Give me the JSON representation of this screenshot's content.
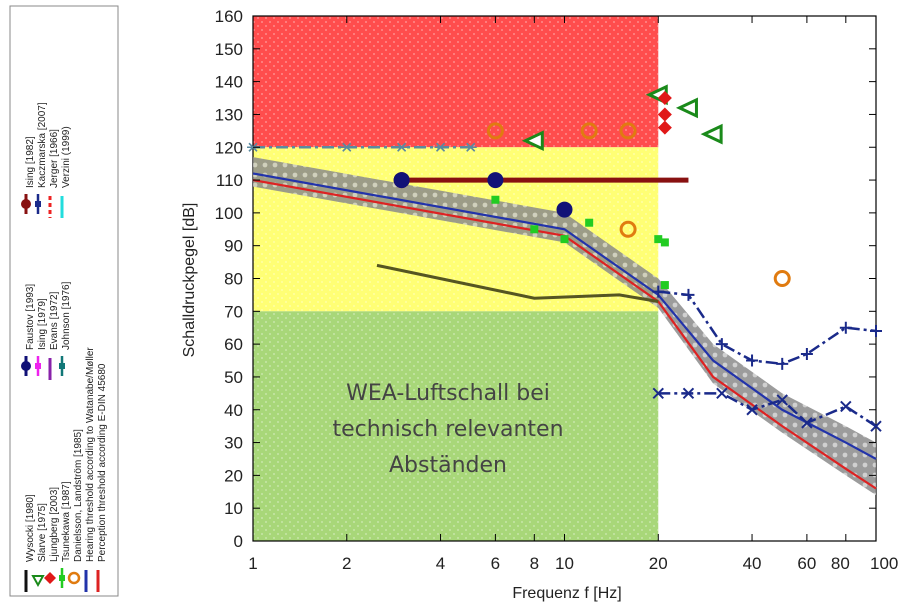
{
  "chart_data": {
    "type": "scatter",
    "x_scale": "log",
    "xlim": [
      1,
      100
    ],
    "ylim": [
      0,
      160
    ],
    "xlabel": "Frequenz f [Hz]",
    "ylabel": "Schalldruckpegel [dB]",
    "x_ticks": [
      1,
      2,
      4,
      6,
      8,
      10,
      20,
      40,
      60,
      80,
      100
    ],
    "x_tick_labels": [
      "1",
      "2",
      "4",
      "6",
      "8",
      "10",
      "20",
      "40",
      "60",
      "80",
      "100"
    ],
    "y_ticks": [
      0,
      10,
      20,
      30,
      40,
      50,
      60,
      70,
      80,
      90,
      100,
      110,
      120,
      130,
      140,
      150,
      160
    ],
    "grid": "off",
    "legend_position": "left (rotated)",
    "annotation": [
      "WEA-Luftschall bei",
      "technisch relevanten",
      "Abständen"
    ],
    "zones": [
      {
        "x": [
          1,
          20
        ],
        "y": [
          120,
          160
        ],
        "color": "#ff3a3a"
      },
      {
        "x": [
          1,
          20
        ],
        "y": [
          70,
          120
        ],
        "color": "#ffff66"
      },
      {
        "x": [
          1,
          20
        ],
        "y": [
          0,
          70
        ],
        "color": "#9ed36a"
      }
    ],
    "legend_groups": [
      [
        {
          "label": "Wysocki [1980]",
          "color": "#111111",
          "marker": "line"
        },
        {
          "label": "Slarve [1975]",
          "color": "#1a8a1a",
          "marker": "triangle"
        },
        {
          "label": "Ljungberg [2003]",
          "color": "#e01818",
          "marker": "diamond"
        },
        {
          "label": "Tsunekawa [1987]",
          "color": "#22cc22",
          "marker": "square-line"
        },
        {
          "label": "Danielsson, Landström [1985]",
          "color": "#e07b10",
          "marker": "circle-open"
        },
        {
          "label": "Hearing threshold according to Watanabe/Møller",
          "color": "#2233aa",
          "marker": "line"
        },
        {
          "label": "Perception threshold according E-DIN 45680",
          "color": "#dd2222",
          "marker": "line"
        }
      ],
      [
        {
          "label": "Faustov [1993]",
          "color": "#111177",
          "marker": "circle-filled"
        },
        {
          "label": "Ising [1979]",
          "color": "#ee22ee",
          "marker": "square-line"
        },
        {
          "label": "Evans [1972]",
          "color": "#8822aa",
          "marker": "line"
        },
        {
          "label": "Johnson [1976]",
          "color": "#117777",
          "marker": "star-line"
        }
      ],
      [
        {
          "label": "Ising [1982]",
          "color": "#881111",
          "marker": "circle-bar"
        },
        {
          "label": "Kaczmarska [2007]",
          "color": "#1a2a8a",
          "marker": "plus-line"
        },
        {
          "label": "Jerger [1966]",
          "color": "#ee2222",
          "marker": "dashed"
        },
        {
          "label": "Verzini (1999)",
          "color": "#22dddd",
          "marker": "line"
        }
      ]
    ],
    "series": [
      {
        "name": "Perception threshold according E-DIN 45680",
        "color": "#dd2222",
        "style": "line",
        "x": [
          1,
          10,
          20,
          30,
          50,
          80,
          100
        ],
        "y": [
          110,
          93,
          73,
          50,
          35,
          22,
          16
        ]
      },
      {
        "name": "Hearing threshold according to Watanabe/Møller",
        "color": "#2233aa",
        "style": "line",
        "x": [
          1,
          10,
          20,
          30,
          50,
          80,
          100
        ],
        "y": [
          112,
          95,
          75,
          55,
          40,
          30,
          25
        ]
      },
      {
        "name": "Ising [1982]",
        "color": "#881111",
        "style": "bar",
        "x": [
          3,
          25
        ],
        "y": [
          110,
          110
        ]
      },
      {
        "name": "Kaczmarska [2007]",
        "color": "#1a2a8a",
        "style": "dashdot-plus",
        "x": [
          20,
          25,
          32,
          40,
          50,
          60,
          80,
          100
        ],
        "y": [
          76,
          75,
          60,
          55,
          54,
          57,
          65,
          64
        ]
      },
      {
        "name": "Kaczmarska [2007]",
        "color": "#1a2a8a",
        "style": "dashdot-x",
        "x": [
          20,
          25,
          32,
          40,
          50,
          60,
          80,
          100
        ],
        "y": [
          45,
          45,
          45,
          40,
          43,
          36,
          41,
          35
        ]
      },
      {
        "name": "Johnson [1976]",
        "color": "#5a8aa0",
        "style": "dashdot-star",
        "x": [
          1,
          2,
          3,
          4,
          5
        ],
        "y": [
          120,
          120,
          120,
          120,
          120
        ]
      },
      {
        "name": "Evans [1972]",
        "color": "#555522",
        "style": "line",
        "x": [
          2.5,
          8,
          15,
          20
        ],
        "y": [
          84,
          74,
          75,
          73
        ]
      },
      {
        "name": "Slarve [1975]",
        "color": "#1a8a1a",
        "style": "triangle",
        "x": [
          8,
          20,
          25,
          30
        ],
        "y": [
          122,
          136,
          132,
          124
        ],
        "y_err": []
      },
      {
        "name": "Ljungberg [2003]",
        "color": "#e01818",
        "style": "diamond",
        "x": [
          21,
          21,
          21
        ],
        "y": [
          135,
          130,
          126
        ]
      },
      {
        "name": "Danielsson, Landström [1985]",
        "color": "#e07b10",
        "style": "circle-open",
        "x": [
          6,
          12,
          16,
          16,
          50
        ],
        "y": [
          125,
          125,
          125,
          95,
          80
        ]
      },
      {
        "name": "Tsunekawa [1987]",
        "color": "#22cc22",
        "style": "square",
        "x": [
          6,
          8,
          10,
          12,
          20,
          21,
          21
        ],
        "y": [
          104,
          95,
          92,
          97,
          92,
          91,
          78
        ]
      },
      {
        "name": "Faustov [1993]",
        "color": "#111177",
        "style": "circle-filled",
        "x": [
          3,
          6,
          10
        ],
        "y": [
          110,
          110,
          101
        ]
      }
    ]
  }
}
